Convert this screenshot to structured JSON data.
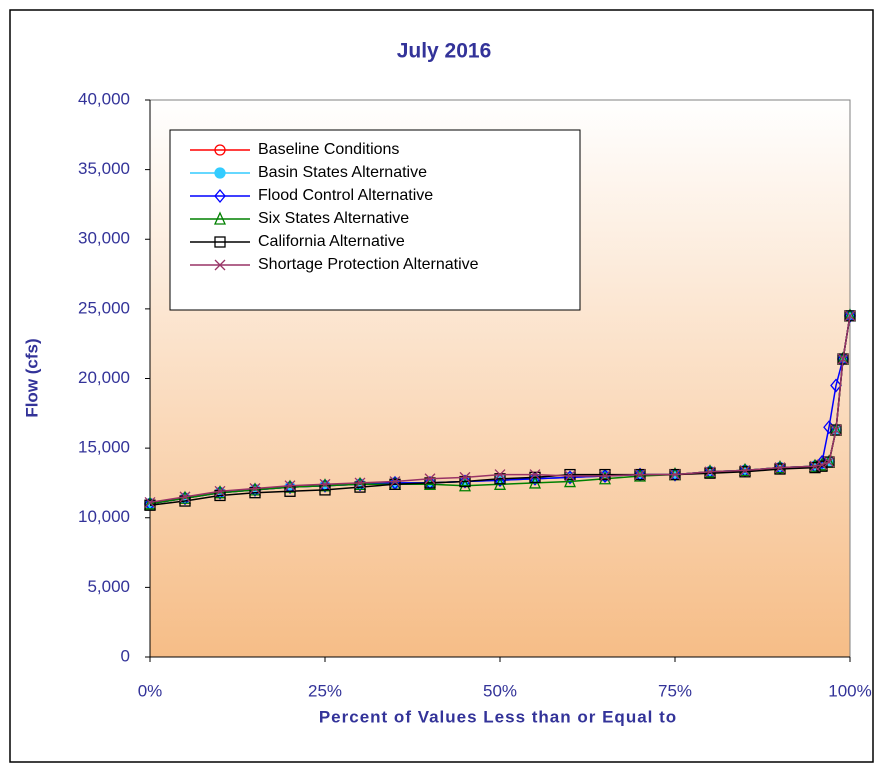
{
  "chart_data": {
    "type": "line",
    "title": "July 2016",
    "x_label": "Percent of Values Less than or Equal to",
    "y_label": "Flow (cfs)",
    "x": [
      0,
      5,
      10,
      15,
      20,
      25,
      30,
      35,
      40,
      45,
      50,
      55,
      60,
      65,
      70,
      75,
      80,
      85,
      90,
      95,
      96,
      97,
      98,
      99,
      100
    ],
    "series": [
      {
        "name": "Baseline Conditions",
        "color": "#ff0000",
        "marker": "circle",
        "values": [
          11000,
          11400,
          11800,
          12000,
          12200,
          12300,
          12400,
          12500,
          12500,
          12600,
          12700,
          12800,
          12900,
          13000,
          13100,
          13100,
          13300,
          13400,
          13600,
          13700,
          13800,
          14000,
          16300,
          21400,
          24500
        ]
      },
      {
        "name": "Basin States Alternative",
        "color": "#33ccff",
        "marker": "dot",
        "values": [
          11000,
          11400,
          11800,
          12000,
          12200,
          12300,
          12400,
          12500,
          12500,
          12600,
          12700,
          12800,
          12900,
          13000,
          13100,
          13100,
          13300,
          13400,
          13600,
          13700,
          13800,
          14000,
          16300,
          21400,
          24500
        ]
      },
      {
        "name": "Flood Control Alternative",
        "color": "#0000ff",
        "marker": "diamond",
        "values": [
          11000,
          11400,
          11800,
          12000,
          12200,
          12300,
          12400,
          12500,
          12500,
          12600,
          12700,
          12800,
          12900,
          13000,
          13100,
          13100,
          13300,
          13400,
          13600,
          13700,
          14000,
          16500,
          19500,
          21400,
          24500
        ]
      },
      {
        "name": "Six States Alternative",
        "color": "#008000",
        "marker": "triangle",
        "values": [
          11000,
          11400,
          11800,
          12000,
          12200,
          12300,
          12400,
          12400,
          12400,
          12300,
          12400,
          12500,
          12600,
          12800,
          13000,
          13100,
          13300,
          13400,
          13600,
          13700,
          13800,
          14000,
          16300,
          21400,
          24500
        ]
      },
      {
        "name": "California Alternative",
        "color": "#000000",
        "marker": "square",
        "values": [
          10900,
          11200,
          11600,
          11800,
          11900,
          12000,
          12200,
          12400,
          12500,
          12600,
          12800,
          12900,
          13100,
          13100,
          13100,
          13100,
          13200,
          13300,
          13500,
          13600,
          13700,
          14000,
          16300,
          21400,
          24500
        ]
      },
      {
        "name": "Shortage Protection Alternative",
        "color": "#993366",
        "marker": "x",
        "values": [
          11100,
          11500,
          11900,
          12100,
          12300,
          12400,
          12500,
          12600,
          12800,
          12900,
          13100,
          13100,
          13000,
          13000,
          13100,
          13100,
          13300,
          13400,
          13600,
          13700,
          13800,
          14000,
          16300,
          21400,
          24500
        ]
      }
    ],
    "xlim": [
      0,
      100
    ],
    "xticks": [
      {
        "value": 0,
        "label": "0%"
      },
      {
        "value": 25,
        "label": "25%"
      },
      {
        "value": 50,
        "label": "50%"
      },
      {
        "value": 75,
        "label": "75%"
      },
      {
        "value": 100,
        "label": "100%"
      }
    ],
    "ylim": [
      0,
      40000
    ],
    "yticks": [
      0,
      {
        "value": 5000,
        "label": "5,000"
      },
      {
        "value": 10000,
        "label": "10,000"
      },
      {
        "value": 15000,
        "label": "15,000"
      },
      {
        "value": 20000,
        "label": "20,000"
      },
      {
        "value": 25000,
        "label": "25,000"
      },
      {
        "value": 30000,
        "label": "30,000"
      },
      {
        "value": 35000,
        "label": "35,000"
      },
      {
        "value": 40000,
        "label": "40,000"
      }
    ],
    "grid": false,
    "legend": "upper-left"
  }
}
